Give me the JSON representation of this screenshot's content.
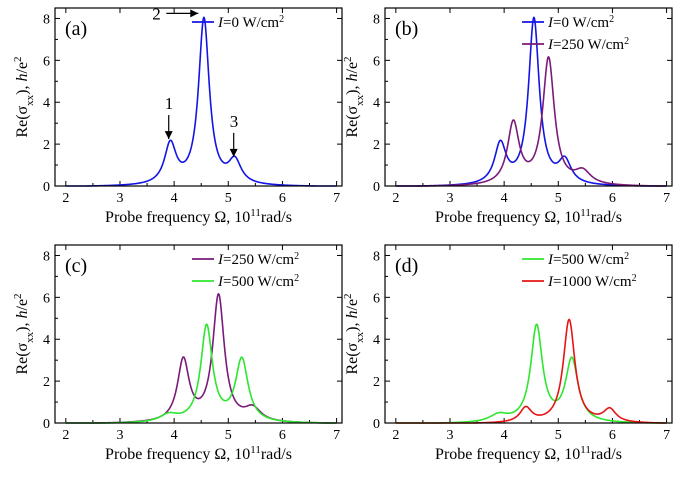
{
  "chart_data": [
    {
      "type": "line",
      "panel_label": "(a)",
      "xlabel": "Probe frequency Ω,  10¹¹rad/s",
      "ylabel": "Re(σxx),  h/e²",
      "xlim": [
        1.8,
        7.1
      ],
      "ylim": [
        0,
        8.5
      ],
      "xticks": [
        2,
        3,
        4,
        5,
        6,
        7
      ],
      "yticks": [
        0,
        2,
        4,
        6,
        8
      ],
      "legend_position": "top-right",
      "series": [
        {
          "name": "I=0 W/cm²",
          "color": "#1414e6",
          "peaks": [
            [
              3.93,
              1.92,
              0.13
            ],
            [
              4.55,
              7.95,
              0.12
            ],
            [
              5.12,
              1.1,
              0.14
            ]
          ]
        }
      ],
      "annotations": [
        {
          "text": "1",
          "x": 3.9,
          "y": 2.05
        },
        {
          "text": "2",
          "x": 4.52,
          "y": 8.1
        },
        {
          "text": "3",
          "x": 5.1,
          "y": 1.2
        }
      ]
    },
    {
      "type": "line",
      "panel_label": "(b)",
      "xlabel": "Probe frequency Ω,  10¹¹rad/s",
      "ylabel": "Re(σxx),  h/e²",
      "xlim": [
        1.8,
        7.1
      ],
      "ylim": [
        0,
        8.5
      ],
      "xticks": [
        2,
        3,
        4,
        5,
        6,
        7
      ],
      "yticks": [
        0,
        2,
        4,
        6,
        8
      ],
      "legend_position": "top-right",
      "series": [
        {
          "name": "I=0 W/cm²",
          "color": "#1414e6",
          "peaks": [
            [
              3.93,
              1.92,
              0.13
            ],
            [
              4.55,
              7.95,
              0.12
            ],
            [
              5.12,
              1.1,
              0.14
            ]
          ]
        },
        {
          "name": "I=250 W/cm²",
          "color": "#7a1a7a",
          "peaks": [
            [
              4.17,
              2.95,
              0.13
            ],
            [
              4.82,
              6.05,
              0.13
            ],
            [
              5.45,
              0.62,
              0.18
            ]
          ]
        }
      ]
    },
    {
      "type": "line",
      "panel_label": "(c)",
      "xlabel": "Probe frequency Ω,  10¹¹rad/s",
      "ylabel": "Re(σxx),  h/e²",
      "xlim": [
        1.8,
        7.1
      ],
      "ylim": [
        0,
        8.5
      ],
      "xticks": [
        2,
        3,
        4,
        5,
        6,
        7
      ],
      "yticks": [
        0,
        2,
        4,
        6,
        8
      ],
      "legend_position": "top-right",
      "series": [
        {
          "name": "I=250 W/cm²",
          "color": "#7a1a7a",
          "peaks": [
            [
              4.17,
              2.95,
              0.13
            ],
            [
              4.82,
              6.05,
              0.13
            ],
            [
              5.45,
              0.62,
              0.18
            ]
          ]
        },
        {
          "name": "I=500 W/cm²",
          "color": "#2ee62e",
          "peaks": [
            [
              3.9,
              0.35,
              0.2
            ],
            [
              4.6,
              4.6,
              0.13
            ],
            [
              5.25,
              3.0,
              0.14
            ]
          ]
        }
      ]
    },
    {
      "type": "line",
      "panel_label": "(d)",
      "xlabel": "Probe frequency Ω,  10¹¹rad/s",
      "ylabel": "Re(σxx),  h/e²",
      "xlim": [
        1.8,
        7.1
      ],
      "ylim": [
        0,
        8.5
      ],
      "xticks": [
        2,
        3,
        4,
        5,
        6,
        7
      ],
      "yticks": [
        0,
        2,
        4,
        6,
        8
      ],
      "legend_position": "top-right",
      "series": [
        {
          "name": "I=500 W/cm²",
          "color": "#2ee62e",
          "peaks": [
            [
              3.9,
              0.35,
              0.2
            ],
            [
              4.6,
              4.6,
              0.13
            ],
            [
              5.25,
              3.0,
              0.14
            ]
          ]
        },
        {
          "name": "I=1000 W/cm²",
          "color": "#e61414",
          "peaks": [
            [
              4.4,
              0.7,
              0.13
            ],
            [
              5.2,
              4.95,
              0.13
            ],
            [
              5.95,
              0.62,
              0.14
            ]
          ]
        }
      ]
    }
  ]
}
